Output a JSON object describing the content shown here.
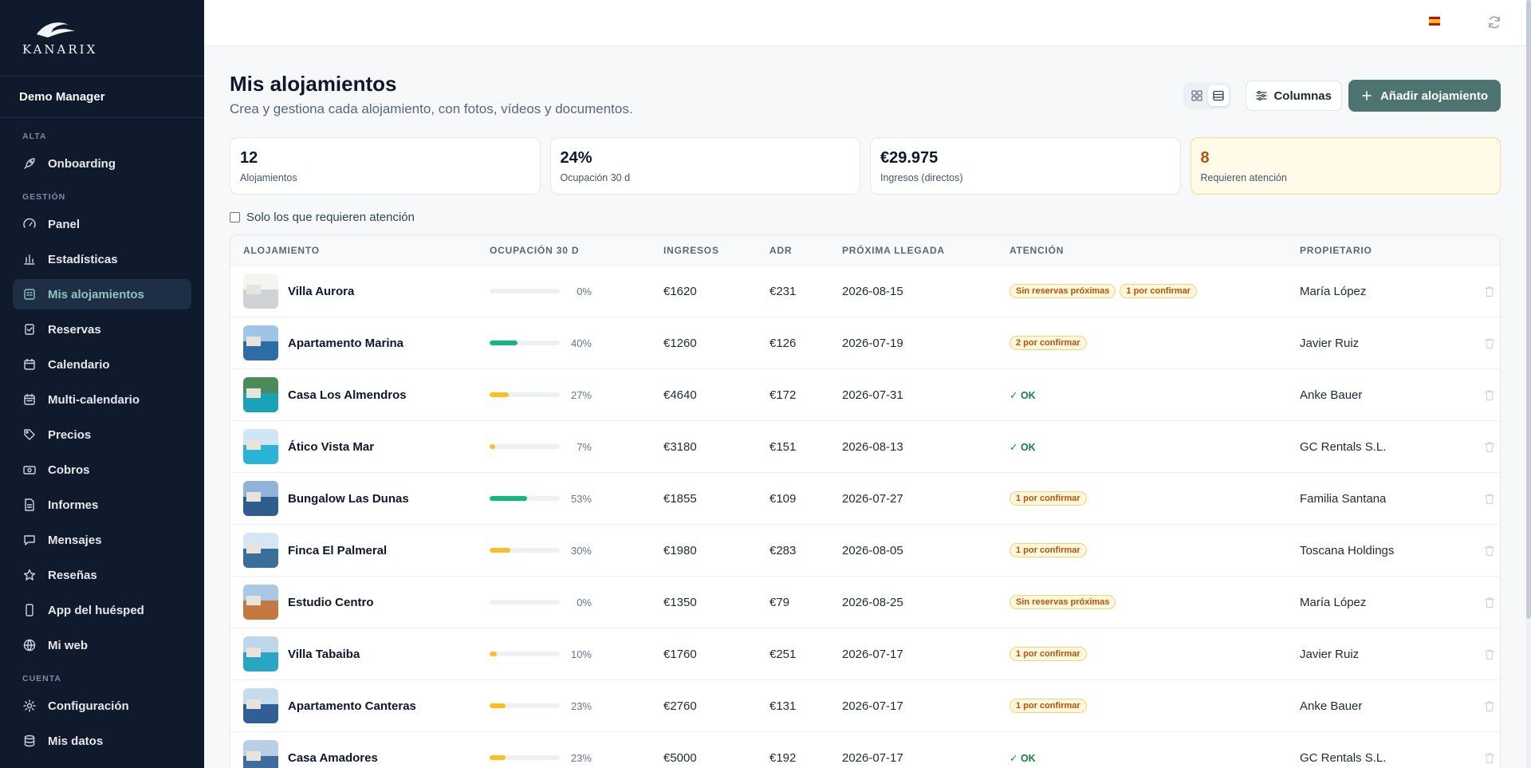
{
  "app": {
    "logo_text": "KANARIX",
    "user": "Demo Manager"
  },
  "sidebar": {
    "sections": [
      {
        "label": "ALTA",
        "items": [
          {
            "label": "Onboarding",
            "icon": "rocket-icon"
          }
        ]
      },
      {
        "label": "GESTIÓN",
        "items": [
          {
            "label": "Panel",
            "icon": "gauge-icon"
          },
          {
            "label": "Estadísticas",
            "icon": "bar-chart-icon"
          },
          {
            "label": "Mis alojamientos",
            "icon": "building-icon",
            "active": true
          },
          {
            "label": "Reservas",
            "icon": "clipboard-check-icon"
          },
          {
            "label": "Calendario",
            "icon": "calendar-icon"
          },
          {
            "label": "Multi-calendario",
            "icon": "calendar-grid-icon"
          },
          {
            "label": "Precios",
            "icon": "tag-icon"
          },
          {
            "label": "Cobros",
            "icon": "banknote-icon"
          },
          {
            "label": "Informes",
            "icon": "file-text-icon"
          },
          {
            "label": "Mensajes",
            "icon": "message-icon"
          },
          {
            "label": "Reseñas",
            "icon": "star-icon"
          },
          {
            "label": "App del huésped",
            "icon": "smartphone-icon"
          },
          {
            "label": "Mi web",
            "icon": "globe-icon"
          }
        ]
      },
      {
        "label": "CUENTA",
        "items": [
          {
            "label": "Configuración",
            "icon": "gear-icon"
          },
          {
            "label": "Mis datos",
            "icon": "database-icon"
          }
        ]
      }
    ]
  },
  "topbar": {
    "language_flag": "spain-flag-icon",
    "refresh_icon": "refresh-icon"
  },
  "page": {
    "title": "Mis alojamientos",
    "subtitle": "Crea y gestiona cada alojamiento, con fotos, vídeos y documentos.",
    "columns_button": "Columnas",
    "add_button": "Añadir alojamiento",
    "filter_label": "Solo los que requieren atención"
  },
  "stats": [
    {
      "value": "12",
      "label": "Alojamientos"
    },
    {
      "value": "24%",
      "label": "Ocupación 30 d"
    },
    {
      "value": "€29.975",
      "label": "Ingresos (directos)"
    },
    {
      "value": "8",
      "label": "Requieren atención"
    }
  ],
  "table": {
    "headers": {
      "name": "ALOJAMIENTO",
      "occupancy": "OCUPACIÓN 30 D",
      "income": "INGRESOS",
      "adr": "ADR",
      "arrival": "PRÓXIMA LLEGADA",
      "attention": "ATENCIÓN",
      "owner": "PROPIETARIO"
    },
    "ok_label": "✓ OK",
    "rows": [
      {
        "name": "Villa Aurora",
        "occupancy": 0,
        "occupancy_label": "0%",
        "income": "€1620",
        "adr": "€231",
        "arrival": "2026-08-15",
        "badges": [
          "Sin reservas próximas",
          "1 por confirmar"
        ],
        "owner": "María López"
      },
      {
        "name": "Apartamento Marina",
        "occupancy": 40,
        "occupancy_label": "40%",
        "income": "€1260",
        "adr": "€126",
        "arrival": "2026-07-19",
        "badges": [
          "2 por confirmar"
        ],
        "owner": "Javier Ruiz"
      },
      {
        "name": "Casa Los Almendros",
        "occupancy": 27,
        "occupancy_label": "27%",
        "income": "€4640",
        "adr": "€172",
        "arrival": "2026-07-31",
        "badges": [],
        "owner": "Anke Bauer"
      },
      {
        "name": "Ático Vista Mar",
        "occupancy": 7,
        "occupancy_label": "7%",
        "income": "€3180",
        "adr": "€151",
        "arrival": "2026-08-13",
        "badges": [],
        "owner": "GC Rentals S.L."
      },
      {
        "name": "Bungalow Las Dunas",
        "occupancy": 53,
        "occupancy_label": "53%",
        "income": "€1855",
        "adr": "€109",
        "arrival": "2026-07-27",
        "badges": [
          "1 por confirmar"
        ],
        "owner": "Familia Santana"
      },
      {
        "name": "Finca El Palmeral",
        "occupancy": 30,
        "occupancy_label": "30%",
        "income": "€1980",
        "adr": "€283",
        "arrival": "2026-08-05",
        "badges": [
          "1 por confirmar"
        ],
        "owner": "Toscana Holdings"
      },
      {
        "name": "Estudio Centro",
        "occupancy": 0,
        "occupancy_label": "0%",
        "income": "€1350",
        "adr": "€79",
        "arrival": "2026-08-25",
        "badges": [
          "Sin reservas próximas"
        ],
        "owner": "María López"
      },
      {
        "name": "Villa Tabaiba",
        "occupancy": 10,
        "occupancy_label": "10%",
        "income": "€1760",
        "adr": "€251",
        "arrival": "2026-07-17",
        "badges": [
          "1 por confirmar"
        ],
        "owner": "Javier Ruiz"
      },
      {
        "name": "Apartamento Canteras",
        "occupancy": 23,
        "occupancy_label": "23%",
        "income": "€2760",
        "adr": "€131",
        "arrival": "2026-07-17",
        "badges": [
          "1 por confirmar"
        ],
        "owner": "Anke Bauer"
      },
      {
        "name": "Casa Amadores",
        "occupancy": 23,
        "occupancy_label": "23%",
        "income": "€5000",
        "adr": "€192",
        "arrival": "2026-07-17",
        "badges": [],
        "owner": "GC Rentals S.L."
      }
    ]
  },
  "colors": {
    "occupancy_high": "#10b981",
    "occupancy_low": "#fbbf24",
    "accent": "#4d7470",
    "sidebar_bg": "#0f1b2d"
  }
}
